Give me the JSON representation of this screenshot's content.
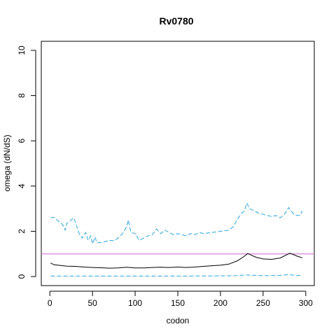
{
  "chart_data": {
    "type": "line",
    "title": "Rv0780",
    "xlabel": "codon",
    "ylabel": "omega (dN/dS)",
    "xlim": [
      -10,
      310
    ],
    "ylim": [
      -0.4,
      10.4
    ],
    "xticks": [
      0,
      50,
      100,
      150,
      200,
      250,
      300
    ],
    "yticks": [
      0,
      2,
      4,
      6,
      8,
      10
    ],
    "grid": false,
    "reference_line": {
      "y": 1,
      "color": "#cc66cc"
    },
    "series": [
      {
        "role": "estimate",
        "color": "#000000",
        "style": "solid",
        "points": [
          [
            1,
            0.6
          ],
          [
            5,
            0.52
          ],
          [
            10,
            0.5
          ],
          [
            20,
            0.46
          ],
          [
            30,
            0.45
          ],
          [
            40,
            0.42
          ],
          [
            50,
            0.4
          ],
          [
            60,
            0.39
          ],
          [
            70,
            0.37
          ],
          [
            80,
            0.38
          ],
          [
            90,
            0.41
          ],
          [
            100,
            0.38
          ],
          [
            110,
            0.38
          ],
          [
            120,
            0.4
          ],
          [
            130,
            0.41
          ],
          [
            140,
            0.4
          ],
          [
            150,
            0.42
          ],
          [
            160,
            0.4
          ],
          [
            170,
            0.42
          ],
          [
            180,
            0.45
          ],
          [
            190,
            0.48
          ],
          [
            200,
            0.5
          ],
          [
            210,
            0.55
          ],
          [
            220,
            0.7
          ],
          [
            228,
            0.9
          ],
          [
            232,
            1.02
          ],
          [
            236,
            0.95
          ],
          [
            242,
            0.85
          ],
          [
            250,
            0.78
          ],
          [
            260,
            0.76
          ],
          [
            270,
            0.82
          ],
          [
            278,
            0.97
          ],
          [
            281,
            1.03
          ],
          [
            285,
            0.98
          ],
          [
            290,
            0.9
          ],
          [
            296,
            0.83
          ]
        ]
      },
      {
        "role": "upper",
        "color": "#29a3e0",
        "style": "dashed",
        "points": [
          [
            1,
            2.6
          ],
          [
            5,
            2.62
          ],
          [
            10,
            2.45
          ],
          [
            15,
            2.3
          ],
          [
            18,
            2.05
          ],
          [
            20,
            2.35
          ],
          [
            25,
            2.5
          ],
          [
            28,
            2.6
          ],
          [
            30,
            2.4
          ],
          [
            33,
            2.05
          ],
          [
            35,
            1.85
          ],
          [
            38,
            1.7
          ],
          [
            42,
            1.95
          ],
          [
            45,
            1.6
          ],
          [
            48,
            1.8
          ],
          [
            50,
            1.45
          ],
          [
            53,
            1.75
          ],
          [
            55,
            1.5
          ],
          [
            60,
            1.5
          ],
          [
            65,
            1.55
          ],
          [
            70,
            1.6
          ],
          [
            75,
            1.58
          ],
          [
            80,
            1.7
          ],
          [
            85,
            1.9
          ],
          [
            90,
            2.2
          ],
          [
            92,
            2.5
          ],
          [
            95,
            1.95
          ],
          [
            100,
            1.9
          ],
          [
            105,
            1.6
          ],
          [
            110,
            1.7
          ],
          [
            115,
            1.8
          ],
          [
            120,
            1.85
          ],
          [
            125,
            2.1
          ],
          [
            130,
            1.9
          ],
          [
            135,
            2.05
          ],
          [
            140,
            1.95
          ],
          [
            145,
            1.85
          ],
          [
            150,
            1.9
          ],
          [
            155,
            1.85
          ],
          [
            160,
            1.8
          ],
          [
            165,
            1.9
          ],
          [
            170,
            1.85
          ],
          [
            175,
            1.95
          ],
          [
            180,
            1.9
          ],
          [
            190,
            1.95
          ],
          [
            200,
            2.0
          ],
          [
            210,
            2.05
          ],
          [
            215,
            2.2
          ],
          [
            220,
            2.55
          ],
          [
            225,
            2.8
          ],
          [
            228,
            2.9
          ],
          [
            231,
            3.25
          ],
          [
            234,
            3.0
          ],
          [
            240,
            2.9
          ],
          [
            245,
            2.8
          ],
          [
            250,
            2.75
          ],
          [
            255,
            2.7
          ],
          [
            260,
            2.65
          ],
          [
            265,
            2.7
          ],
          [
            270,
            2.6
          ],
          [
            275,
            2.75
          ],
          [
            280,
            3.05
          ],
          [
            283,
            2.9
          ],
          [
            286,
            2.75
          ],
          [
            290,
            2.7
          ],
          [
            293,
            2.7
          ],
          [
            296,
            2.9
          ]
        ]
      },
      {
        "role": "lower",
        "color": "#29a3e0",
        "style": "dashed",
        "points": [
          [
            1,
            0.02
          ],
          [
            50,
            0.02
          ],
          [
            100,
            0.02
          ],
          [
            150,
            0.02
          ],
          [
            200,
            0.03
          ],
          [
            220,
            0.04
          ],
          [
            230,
            0.07
          ],
          [
            235,
            0.06
          ],
          [
            250,
            0.04
          ],
          [
            270,
            0.05
          ],
          [
            280,
            0.09
          ],
          [
            285,
            0.06
          ],
          [
            296,
            0.04
          ]
        ]
      }
    ]
  }
}
